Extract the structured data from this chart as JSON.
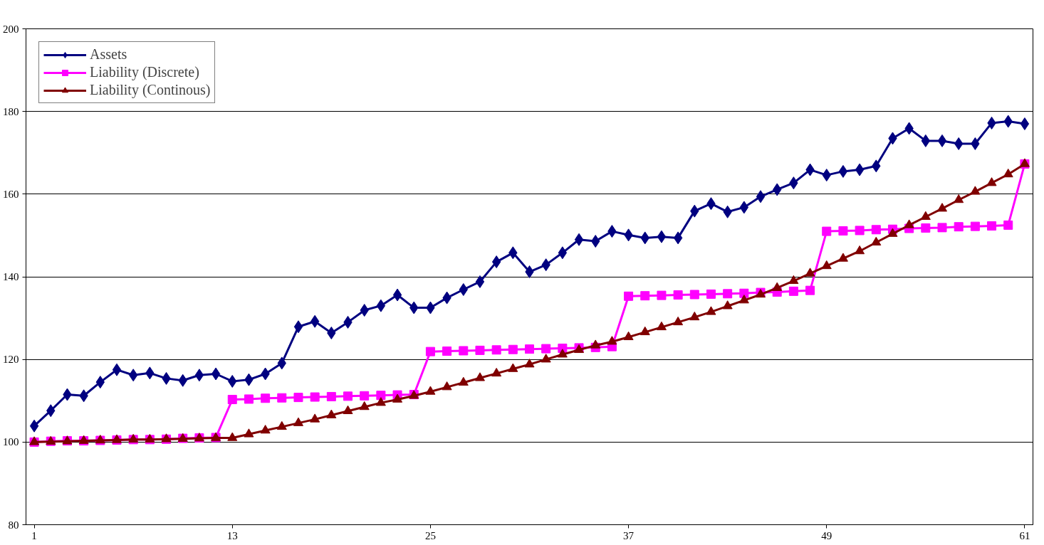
{
  "chart_data": {
    "type": "line",
    "x": [
      1,
      2,
      3,
      4,
      5,
      6,
      7,
      8,
      9,
      10,
      11,
      12,
      13,
      14,
      15,
      16,
      17,
      18,
      19,
      20,
      21,
      22,
      23,
      24,
      25,
      26,
      27,
      28,
      29,
      30,
      31,
      32,
      33,
      34,
      35,
      36,
      37,
      38,
      39,
      40,
      41,
      42,
      43,
      44,
      45,
      46,
      47,
      48,
      49,
      50,
      51,
      52,
      53,
      54,
      55,
      56,
      57,
      58,
      59,
      60,
      61
    ],
    "xlim": [
      0.5,
      61.5
    ],
    "xticks": [
      1,
      13,
      25,
      37,
      49,
      61
    ],
    "ylim": [
      80,
      200
    ],
    "yticks": [
      80,
      100,
      120,
      140,
      160,
      180,
      200
    ],
    "grid": "y",
    "legend": "top left",
    "series": [
      {
        "name": "Assets",
        "color": "#000080",
        "marker": "diamond",
        "values": [
          103.9,
          107.6,
          111.5,
          111.2,
          114.5,
          117.5,
          116.2,
          116.7,
          115.4,
          114.9,
          116.2,
          116.5,
          114.7,
          115.1,
          116.5,
          119.1,
          127.9,
          129.2,
          126.4,
          129.0,
          131.9,
          133.0,
          135.6,
          132.5,
          132.5,
          134.9,
          136.9,
          138.8,
          143.6,
          145.8,
          141.2,
          142.9,
          145.8,
          149.0,
          148.6,
          151.0,
          150.1,
          149.4,
          149.7,
          149.4,
          155.9,
          157.7,
          155.7,
          156.8,
          159.4,
          161.1,
          162.7,
          165.9,
          164.6,
          165.5,
          165.9,
          166.8,
          173.5,
          175.9,
          172.9,
          172.9,
          172.2,
          172.2,
          177.2,
          177.6,
          177.0
        ]
      },
      {
        "name": "Liability (Discrete)",
        "color": "#ff00ff",
        "marker": "square",
        "values": [
          100,
          100.2,
          100.3,
          100.3,
          100.4,
          100.5,
          100.6,
          100.6,
          100.7,
          100.9,
          101,
          101.1,
          110.3,
          110.4,
          110.6,
          110.7,
          110.8,
          110.9,
          111,
          111.1,
          111.2,
          111.3,
          111.4,
          111.5,
          121.9,
          122,
          122.1,
          122.2,
          122.3,
          122.4,
          122.5,
          122.6,
          122.7,
          122.8,
          122.9,
          123.1,
          135.3,
          135.4,
          135.5,
          135.6,
          135.7,
          135.8,
          135.9,
          136,
          136.2,
          136.3,
          136.5,
          136.7,
          151,
          151.1,
          151.2,
          151.4,
          151.5,
          151.7,
          151.8,
          151.9,
          152.1,
          152.2,
          152.3,
          152.5,
          167.3
        ]
      },
      {
        "name": "Liability (Continous)",
        "color": "#800000",
        "marker": "triangle",
        "values": [
          100,
          100.1,
          100.2,
          100.3,
          100.4,
          100.5,
          100.6,
          100.6,
          100.7,
          100.8,
          100.9,
          101,
          101,
          101.9,
          102.8,
          103.7,
          104.6,
          105.5,
          106.5,
          107.5,
          108.5,
          109.5,
          110.3,
          111.2,
          112.2,
          113.3,
          114.4,
          115.5,
          116.6,
          117.7,
          118.8,
          120,
          121.2,
          122.3,
          123.4,
          124.3,
          125.4,
          126.6,
          127.8,
          129,
          130.2,
          131.5,
          132.9,
          134.3,
          135.7,
          137.3,
          139,
          140.8,
          142.6,
          144.4,
          146.2,
          148.3,
          150.4,
          152.5,
          154.5,
          156.5,
          158.6,
          160.6,
          162.7,
          164.8,
          167.3
        ]
      }
    ]
  }
}
